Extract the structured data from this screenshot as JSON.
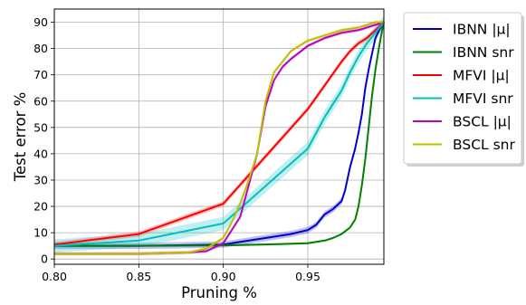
{
  "chart_data": {
    "type": "line",
    "title": "",
    "xlabel": "Pruning %",
    "ylabel": "Test error %",
    "xlim": [
      0.8,
      0.995
    ],
    "ylim": [
      -2,
      95
    ],
    "xticks": [
      0.8,
      0.85,
      0.9,
      0.95
    ],
    "xtick_labels": [
      "0.80",
      "0.85",
      "0.90",
      "0.95"
    ],
    "yticks": [
      0,
      10,
      20,
      30,
      40,
      50,
      60,
      70,
      80,
      90
    ],
    "ytick_labels": [
      "0",
      "10",
      "20",
      "30",
      "40",
      "50",
      "60",
      "70",
      "80",
      "90"
    ],
    "grid": true,
    "legend_position": "outside-right",
    "series": [
      {
        "name": "IBNN |μ|",
        "color": "#0000cc",
        "band": 1.2,
        "x": [
          0.8,
          0.85,
          0.9,
          0.92,
          0.94,
          0.95,
          0.955,
          0.96,
          0.965,
          0.97,
          0.972,
          0.975,
          0.978,
          0.98,
          0.982,
          0.984,
          0.986,
          0.988,
          0.99,
          0.993,
          0.995
        ],
        "y": [
          5,
          5,
          5.5,
          7.5,
          9.5,
          11,
          13,
          17,
          19,
          22,
          26,
          35,
          42,
          48,
          55,
          65,
          72,
          78,
          84,
          88,
          90
        ]
      },
      {
        "name": "IBNN snr",
        "color": "#008000",
        "band": 0.4,
        "x": [
          0.8,
          0.85,
          0.9,
          0.93,
          0.95,
          0.96,
          0.965,
          0.97,
          0.975,
          0.978,
          0.98,
          0.982,
          0.984,
          0.986,
          0.988,
          0.99,
          0.992,
          0.994,
          0.995
        ],
        "y": [
          5,
          5,
          5.2,
          5.6,
          6,
          7,
          8,
          9.5,
          12,
          15,
          20,
          28,
          38,
          50,
          62,
          72,
          80,
          87,
          90
        ]
      },
      {
        "name": "MFVI |μ|",
        "color": "#ff0000",
        "band": 1.0,
        "x": [
          0.8,
          0.85,
          0.9,
          0.95,
          0.96,
          0.97,
          0.975,
          0.98,
          0.985,
          0.99,
          0.995
        ],
        "y": [
          5.5,
          9.5,
          21,
          57,
          66,
          75,
          79,
          82,
          84,
          87,
          90
        ]
      },
      {
        "name": "MFVI snr",
        "color": "#00bfbf",
        "band": 2.5,
        "x": [
          0.8,
          0.85,
          0.9,
          0.95,
          0.96,
          0.97,
          0.975,
          0.98,
          0.985,
          0.99,
          0.995
        ],
        "y": [
          5,
          7,
          13.5,
          42,
          54,
          64,
          71,
          77,
          82,
          86,
          90
        ]
      },
      {
        "name": "BSCL |μ|",
        "color": "#bf00bf",
        "band": 0.6,
        "x": [
          0.8,
          0.85,
          0.88,
          0.89,
          0.9,
          0.91,
          0.915,
          0.92,
          0.925,
          0.93,
          0.935,
          0.94,
          0.95,
          0.96,
          0.97,
          0.98,
          0.99,
          0.995
        ],
        "y": [
          2,
          2,
          2.5,
          3,
          6,
          16,
          28,
          40,
          58,
          68,
          73,
          76,
          81,
          84,
          86,
          87,
          89,
          90
        ]
      },
      {
        "name": "BSCL snr",
        "color": "#bfbf00",
        "band": 0.6,
        "x": [
          0.8,
          0.85,
          0.88,
          0.89,
          0.9,
          0.905,
          0.91,
          0.915,
          0.92,
          0.925,
          0.93,
          0.935,
          0.94,
          0.95,
          0.96,
          0.97,
          0.98,
          0.99,
          0.995
        ],
        "y": [
          2,
          2,
          2.5,
          4,
          8,
          14,
          21,
          30,
          40,
          60,
          71,
          75,
          79,
          83,
          85,
          87,
          88,
          90,
          90
        ]
      }
    ]
  }
}
